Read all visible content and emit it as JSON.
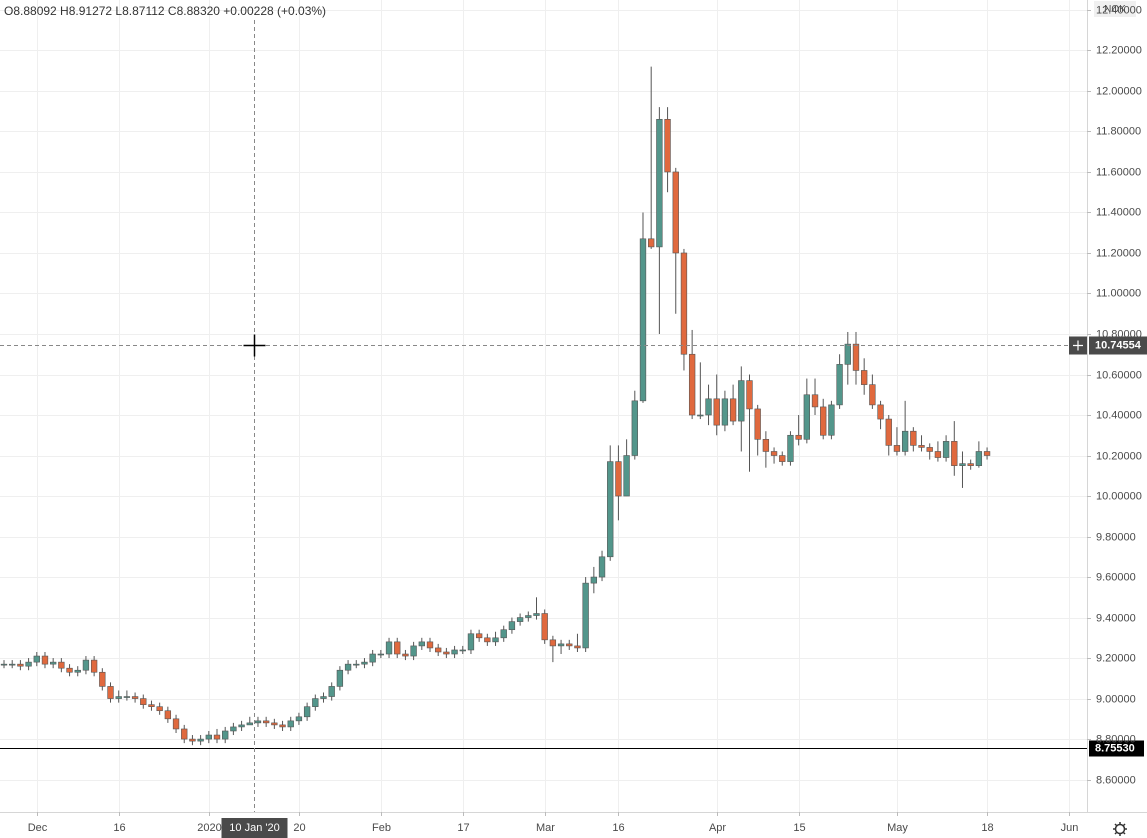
{
  "chart_data": {
    "type": "candlestick",
    "legend_text": "O8.88092 H8.91272 L8.87112 C8.88320 +0.00228 (+0.03%)",
    "currency": "NOK",
    "up_color": "#53968b",
    "down_color": "#e0693e",
    "grid": true,
    "x": [
      0,
      1,
      2,
      3,
      4,
      5,
      6,
      7,
      8,
      9,
      10,
      11,
      12,
      13,
      14,
      15,
      16,
      17,
      18,
      19,
      20,
      21,
      22,
      23,
      24,
      25,
      26,
      27,
      28,
      29,
      30,
      31,
      32,
      33,
      34,
      35,
      36,
      37,
      38,
      39,
      40,
      41,
      42,
      43,
      44,
      45,
      46,
      47,
      48,
      49,
      50,
      51,
      52,
      53,
      54,
      55,
      56,
      57,
      58,
      59,
      60,
      61,
      62,
      63,
      64,
      65,
      66,
      67,
      68,
      69,
      70,
      71,
      72,
      73,
      74,
      75,
      76,
      77,
      78,
      79,
      80,
      81,
      82,
      83,
      84,
      85,
      86,
      87,
      88,
      89,
      90,
      91,
      92,
      93,
      94,
      95,
      96,
      97,
      98,
      99,
      100,
      101,
      102,
      103,
      104,
      105,
      106,
      107,
      108,
      109,
      110,
      111,
      112,
      113,
      114,
      115,
      116,
      117,
      118,
      119,
      120
    ],
    "open": [
      9.17,
      9.17,
      9.17,
      9.16,
      9.18,
      9.21,
      9.17,
      9.18,
      9.15,
      9.13,
      9.14,
      9.19,
      9.13,
      9.06,
      9.0,
      9.01,
      9.01,
      9.0,
      8.97,
      8.96,
      8.94,
      8.9,
      8.85,
      8.8,
      8.79,
      8.8,
      8.82,
      8.8,
      8.84,
      8.86,
      8.87,
      8.88,
      8.89,
      8.88,
      8.87,
      8.86,
      8.89,
      8.91,
      8.96,
      9.0,
      9.01,
      9.06,
      9.14,
      9.17,
      9.17,
      9.18,
      9.22,
      9.22,
      9.28,
      9.22,
      9.21,
      9.26,
      9.28,
      9.25,
      9.23,
      9.22,
      9.24,
      9.24,
      9.32,
      9.3,
      9.28,
      9.3,
      9.34,
      9.38,
      9.4,
      9.41,
      9.42,
      9.29,
      9.26,
      9.27,
      9.26,
      9.25,
      9.57,
      9.6,
      9.7,
      10.17,
      10.0,
      10.2,
      10.47,
      11.27,
      11.23,
      11.86,
      11.6,
      11.2,
      10.7,
      10.4,
      10.4,
      10.48,
      10.35,
      10.48,
      10.37,
      10.57,
      10.43,
      10.28,
      10.22,
      10.2,
      10.17,
      10.3,
      10.28,
      10.5,
      10.44,
      10.3,
      10.45,
      10.65,
      10.75,
      10.62,
      10.55,
      10.45,
      10.38,
      10.25,
      10.22,
      10.32,
      10.25,
      10.24,
      10.22,
      10.19,
      10.27,
      10.15,
      10.16,
      10.15,
      10.22
    ],
    "high": [
      9.19,
      9.19,
      9.19,
      9.2,
      9.23,
      9.23,
      9.2,
      9.2,
      9.17,
      9.16,
      9.21,
      9.21,
      9.15,
      9.08,
      9.04,
      9.04,
      9.03,
      9.02,
      8.99,
      8.98,
      8.96,
      8.92,
      8.87,
      8.82,
      8.82,
      8.84,
      8.85,
      8.86,
      8.88,
      8.89,
      8.91,
      8.91,
      8.91,
      8.9,
      8.89,
      8.91,
      8.93,
      8.98,
      9.02,
      9.03,
      9.08,
      9.16,
      9.19,
      9.19,
      9.2,
      9.24,
      9.24,
      9.3,
      9.3,
      9.24,
      9.28,
      9.3,
      9.3,
      9.27,
      9.25,
      9.26,
      9.26,
      9.34,
      9.34,
      9.32,
      9.33,
      9.36,
      9.4,
      9.42,
      9.43,
      9.5,
      9.44,
      9.31,
      9.29,
      9.29,
      9.32,
      9.6,
      9.65,
      9.73,
      10.25,
      10.25,
      10.28,
      10.52,
      11.4,
      12.12,
      11.92,
      11.92,
      11.62,
      11.22,
      10.82,
      10.66,
      10.55,
      10.6,
      10.52,
      10.55,
      10.64,
      10.6,
      10.45,
      10.32,
      10.24,
      10.22,
      10.32,
      10.4,
      10.58,
      10.58,
      10.48,
      10.47,
      10.7,
      10.81,
      10.81,
      10.68,
      10.6,
      10.47,
      10.4,
      10.34,
      10.47,
      10.34,
      10.3,
      10.26,
      10.27,
      10.3,
      10.37,
      10.22,
      10.18,
      10.27,
      10.24
    ],
    "low": [
      9.15,
      9.15,
      9.14,
      9.14,
      9.16,
      9.15,
      9.15,
      9.13,
      9.11,
      9.11,
      9.12,
      9.11,
      9.04,
      8.98,
      8.98,
      8.99,
      8.98,
      8.95,
      8.94,
      8.92,
      8.88,
      8.83,
      8.78,
      8.77,
      8.77,
      8.78,
      8.78,
      8.78,
      8.82,
      8.84,
      8.87,
      8.86,
      8.86,
      8.85,
      8.84,
      8.84,
      8.87,
      8.89,
      8.94,
      8.98,
      8.99,
      9.04,
      9.12,
      9.15,
      9.15,
      9.16,
      9.2,
      9.2,
      9.2,
      9.19,
      9.19,
      9.24,
      9.23,
      9.21,
      9.2,
      9.2,
      9.22,
      9.22,
      9.28,
      9.26,
      9.26,
      9.28,
      9.32,
      9.36,
      9.38,
      9.39,
      9.27,
      9.18,
      9.22,
      9.24,
      9.23,
      9.23,
      9.52,
      9.58,
      9.68,
      9.88,
      10.0,
      10.18,
      10.46,
      11.22,
      10.8,
      11.5,
      10.9,
      10.62,
      10.38,
      10.38,
      10.35,
      10.3,
      10.32,
      10.35,
      10.22,
      10.12,
      10.2,
      10.14,
      10.16,
      10.15,
      10.15,
      10.25,
      10.26,
      10.4,
      10.28,
      10.28,
      10.43,
      10.55,
      10.55,
      10.5,
      10.43,
      10.33,
      10.2,
      10.2,
      10.2,
      10.22,
      10.22,
      10.18,
      10.17,
      10.17,
      10.1,
      10.04,
      10.13,
      10.14,
      10.18
    ],
    "close": [
      9.17,
      9.17,
      9.16,
      9.18,
      9.21,
      9.17,
      9.18,
      9.15,
      9.13,
      9.14,
      9.19,
      9.13,
      9.06,
      9.0,
      9.01,
      9.01,
      9.0,
      8.97,
      8.96,
      8.94,
      8.9,
      8.85,
      8.8,
      8.79,
      8.8,
      8.82,
      8.8,
      8.84,
      8.86,
      8.87,
      8.88,
      8.89,
      8.88,
      8.87,
      8.86,
      8.89,
      8.91,
      8.96,
      9.0,
      9.01,
      9.06,
      9.14,
      9.17,
      9.17,
      9.18,
      9.22,
      9.22,
      9.28,
      9.22,
      9.21,
      9.26,
      9.28,
      9.25,
      9.23,
      9.22,
      9.24,
      9.24,
      9.32,
      9.3,
      9.28,
      9.3,
      9.34,
      9.38,
      9.4,
      9.41,
      9.42,
      9.29,
      9.26,
      9.27,
      9.26,
      9.25,
      9.57,
      9.6,
      9.7,
      10.17,
      10.0,
      10.2,
      10.47,
      11.27,
      11.23,
      11.86,
      11.6,
      11.2,
      10.7,
      10.4,
      10.4,
      10.48,
      10.35,
      10.48,
      10.37,
      10.57,
      10.43,
      10.28,
      10.22,
      10.2,
      10.17,
      10.3,
      10.28,
      10.5,
      10.44,
      10.3,
      10.45,
      10.65,
      10.75,
      10.62,
      10.55,
      10.45,
      10.38,
      10.25,
      10.22,
      10.32,
      10.25,
      10.24,
      10.22,
      10.19,
      10.27,
      10.15,
      10.16,
      10.15,
      10.22,
      10.2
    ],
    "xlim": [
      -0.49,
      132.2
    ],
    "ylim": [
      8.44,
      12.449
    ],
    "xticks": [
      {
        "value": 4,
        "label": "Dec"
      },
      {
        "value": 14,
        "label": "16"
      },
      {
        "value": 25,
        "label": "2020"
      },
      {
        "value": 36,
        "label": "20"
      },
      {
        "value": 46,
        "label": "Feb"
      },
      {
        "value": 56,
        "label": "17"
      },
      {
        "value": 66,
        "label": "Mar"
      },
      {
        "value": 75,
        "label": "16"
      },
      {
        "value": 87,
        "label": "Apr"
      },
      {
        "value": 97,
        "label": "15"
      },
      {
        "value": 109,
        "label": "May"
      },
      {
        "value": 120,
        "label": "18"
      },
      {
        "value": 130,
        "label": "Jun"
      }
    ],
    "yticks": [
      {
        "value": 8.6,
        "label": "8.60000"
      },
      {
        "value": 8.8,
        "label": "8.80000"
      },
      {
        "value": 9.0,
        "label": "9.00000"
      },
      {
        "value": 9.2,
        "label": "9.20000"
      },
      {
        "value": 9.4,
        "label": "9.40000"
      },
      {
        "value": 9.6,
        "label": "9.60000"
      },
      {
        "value": 9.8,
        "label": "9.80000"
      },
      {
        "value": 10.0,
        "label": "10.00000"
      },
      {
        "value": 10.2,
        "label": "10.20000"
      },
      {
        "value": 10.4,
        "label": "10.40000"
      },
      {
        "value": 10.6,
        "label": "10.60000"
      },
      {
        "value": 10.8,
        "label": "10.80000"
      },
      {
        "value": 11.0,
        "label": "11.00000"
      },
      {
        "value": 11.2,
        "label": "11.20000"
      },
      {
        "value": 11.4,
        "label": "11.40000"
      },
      {
        "value": 11.6,
        "label": "11.60000"
      },
      {
        "value": 11.8,
        "label": "11.80000"
      },
      {
        "value": 12.0,
        "label": "12.00000"
      },
      {
        "value": 12.2,
        "label": "12.20000"
      },
      {
        "value": 12.4,
        "label": "12.40000"
      }
    ],
    "horizontal_line": {
      "value": 8.7553,
      "label": "8.75530"
    },
    "crosshair": {
      "x": {
        "value": 30.5,
        "label": "10 Jan '20"
      },
      "y": 10.74554
    }
  }
}
